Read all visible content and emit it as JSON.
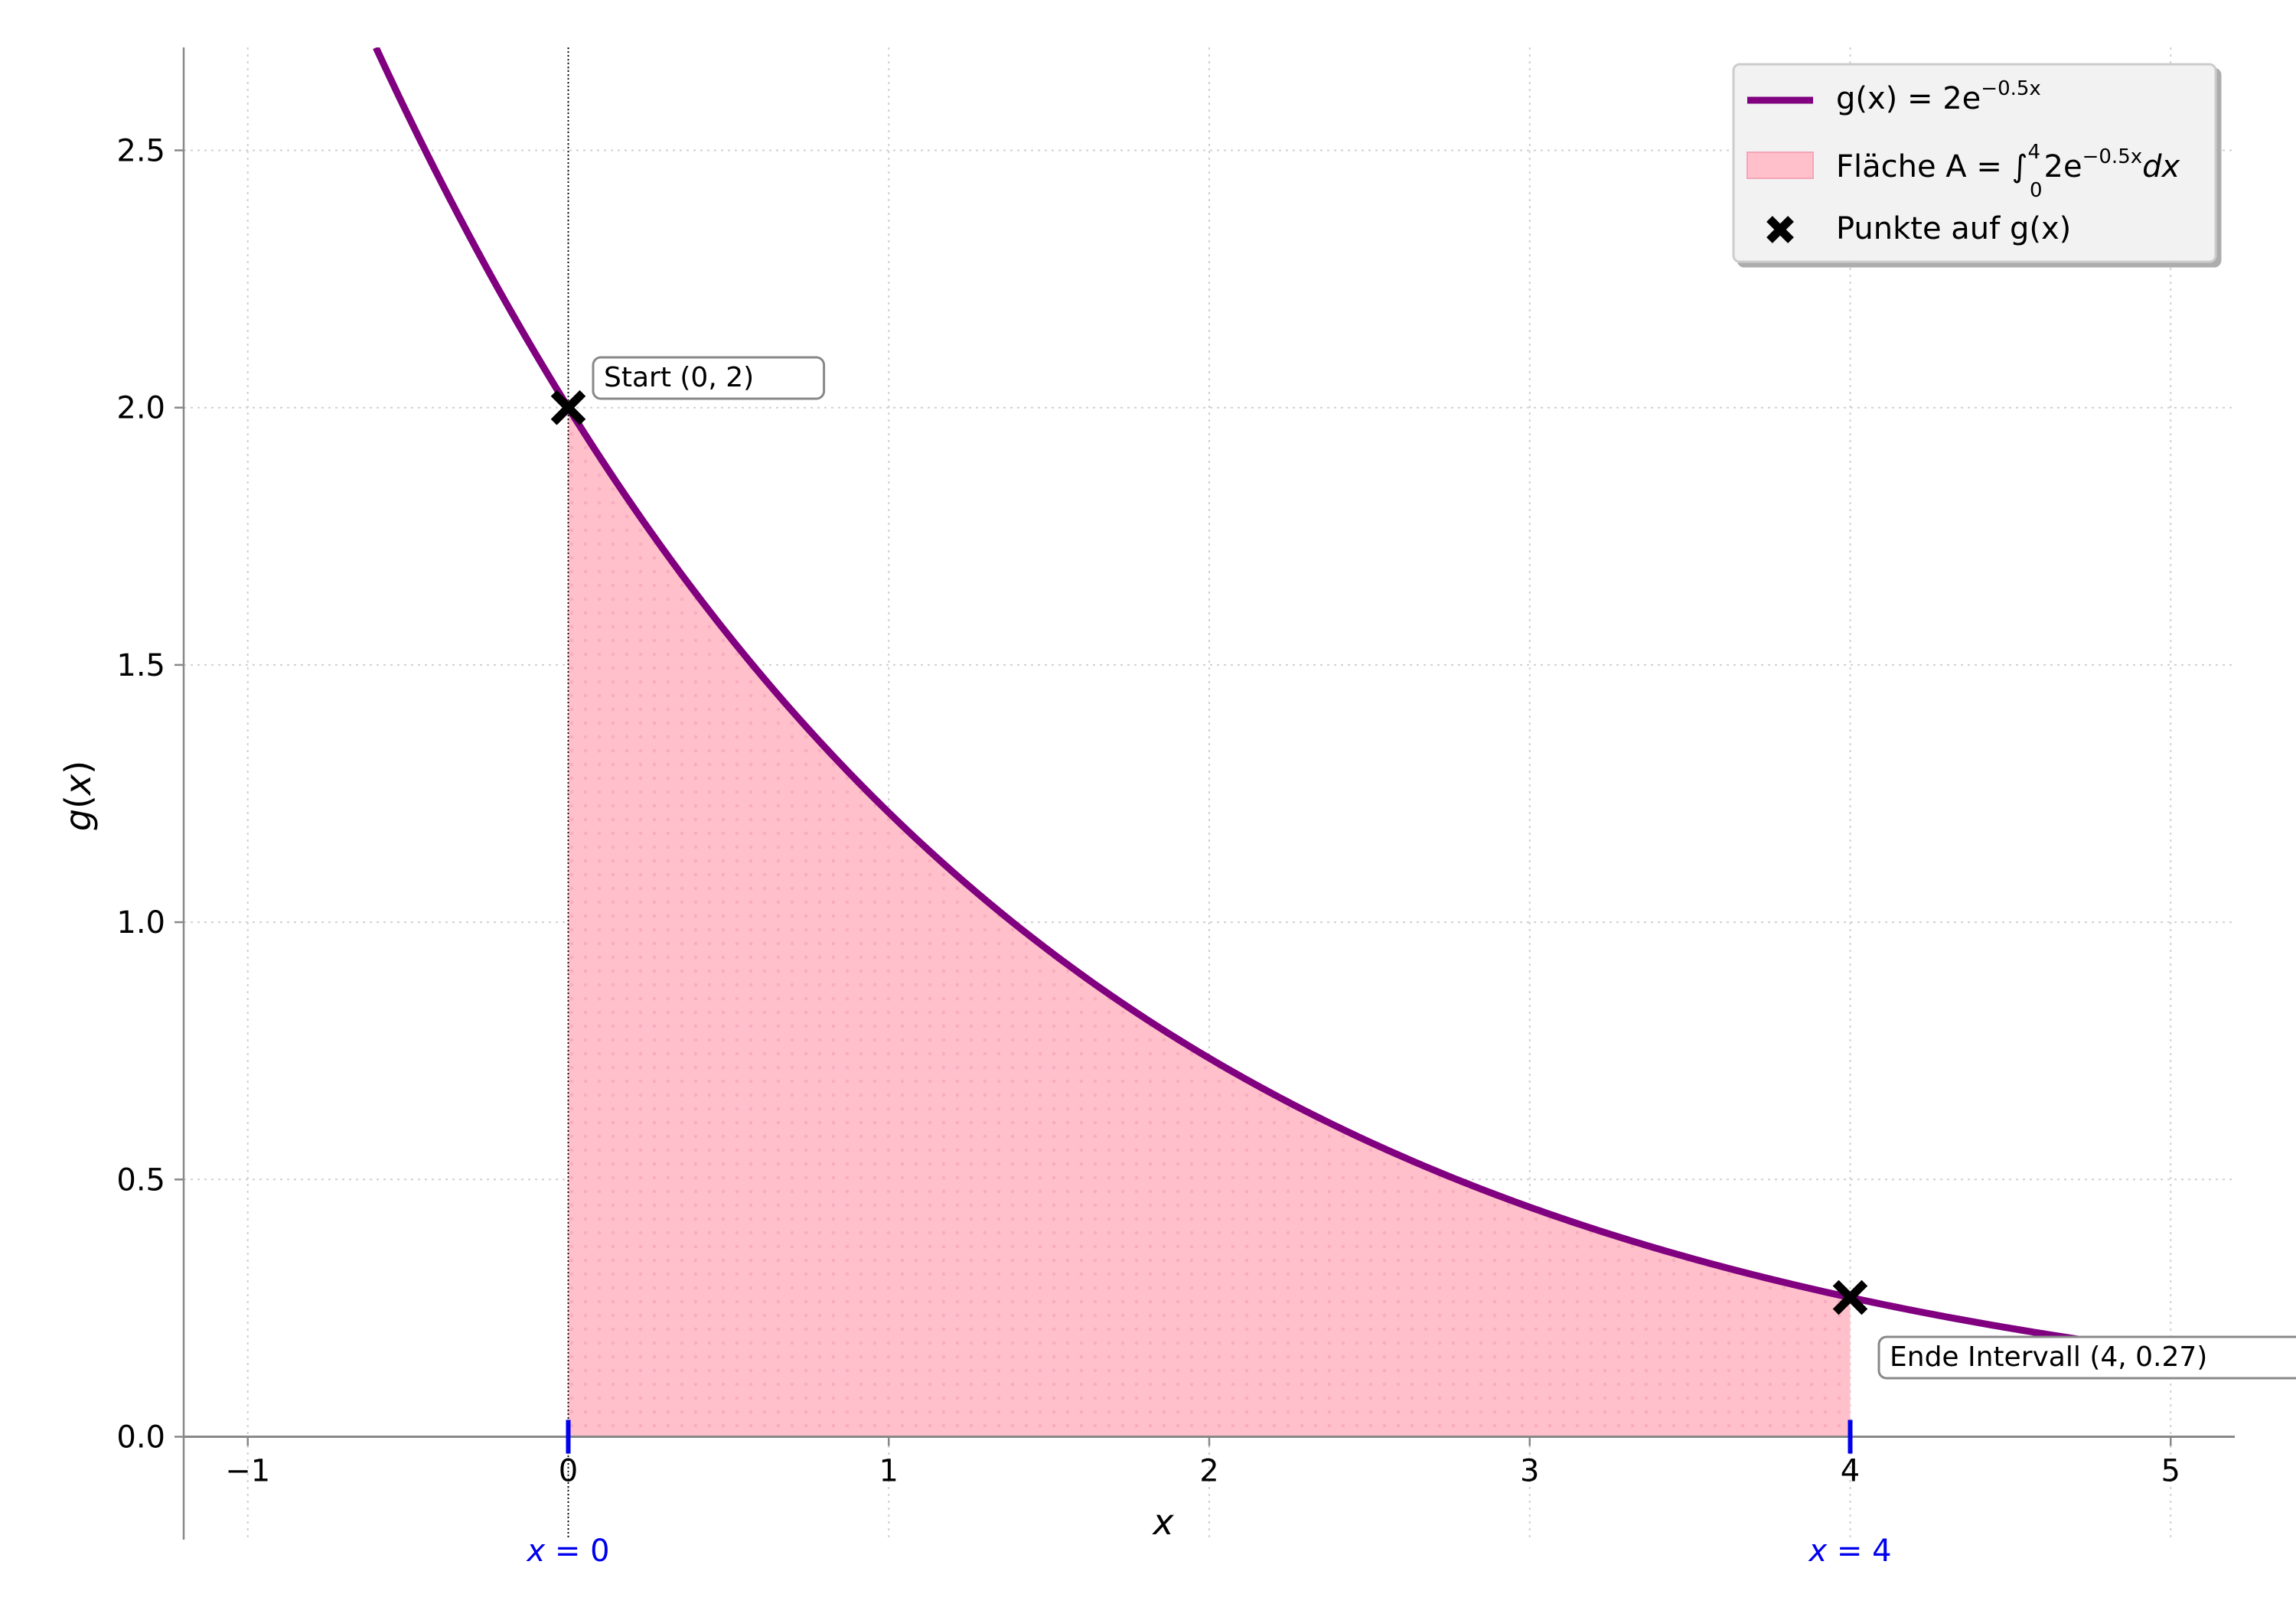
{
  "chart_data": {
    "type": "line",
    "title": "",
    "xlabel": "x",
    "ylabel": "g(x)",
    "xlim": [
      -1.2,
      5.2
    ],
    "ylim": [
      -0.2,
      2.7
    ],
    "grid": true,
    "legend_position": "top-right",
    "x_ticks": [
      -1,
      0,
      1,
      2,
      3,
      4,
      5
    ],
    "x_tick_labels": [
      "−1",
      "0",
      "1",
      "2",
      "3",
      "4",
      "5"
    ],
    "y_ticks": [
      0,
      0.5,
      1,
      1.5,
      2,
      2.5
    ],
    "y_tick_labels": [
      "0.0",
      "0.5",
      "1.0",
      "1.5",
      "2.0",
      "2.5"
    ],
    "series": [
      {
        "name": "g(x) = 2e^{−0.5x}",
        "function": {
          "a": 2,
          "k": -0.5
        },
        "x": [
          -0.6,
          -0.5,
          0,
          0.5,
          1,
          1.5,
          2,
          2.5,
          3,
          3.5,
          4,
          4.5,
          5,
          5.2
        ],
        "values": [
          2.7,
          2.57,
          2.0,
          1.56,
          1.21,
          0.94,
          0.74,
          0.57,
          0.45,
          0.35,
          0.27,
          0.21,
          0.16,
          0.15
        ],
        "color": "#800080"
      }
    ],
    "area": {
      "x_from": 0,
      "x_to": 4,
      "color": "#ffc0cb"
    },
    "points": [
      {
        "x": 0,
        "y": 2
      },
      {
        "x": 4,
        "y": 0.27
      }
    ],
    "legend": [
      {
        "kind": "line",
        "main": "g(x) = 2e",
        "sup": "−0.5x"
      },
      {
        "kind": "area",
        "main": "Fläche A = ∫",
        "sub": "0",
        "sup": "4",
        "main2": "2e",
        "sup2": "−0.5x",
        "tail": "dx"
      },
      {
        "kind": "marker",
        "main": "Punkte auf g(x)"
      }
    ],
    "annotations": [
      {
        "text": "Start (0, 2)"
      },
      {
        "text": "Ende Intervall (4, 0.27)"
      }
    ],
    "interval_markers": [
      {
        "x": 0,
        "label": "x = 0"
      },
      {
        "x": 4,
        "label": "x = 4"
      }
    ],
    "colors": {
      "curve": "#800080",
      "fill": "#ffc0cb",
      "fill_dots": "#f4a6b8",
      "points": "#000000",
      "interval": "#0000ee",
      "grid": "#d0d0d0",
      "axis": "#888888"
    }
  }
}
